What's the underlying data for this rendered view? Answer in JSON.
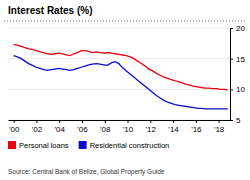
{
  "chart_data": {
    "type": "line",
    "title": "Interest Rates (%)",
    "annotations": [
      "Source: Central Bank of Belize, Global Property Guide"
    ],
    "x": [
      2000,
      2000.3298,
      2000.6596,
      2000.9895,
      2001.3193,
      2001.6491,
      2001.9789,
      2002.3088,
      2002.6386,
      2002.9684,
      2003.2982,
      2003.6281,
      2003.9579,
      2004.2877,
      2004.6175,
      2004.9474,
      2005.2772,
      2005.607,
      2005.9368,
      2006.2667,
      2006.5965,
      2006.9263,
      2007.2561,
      2007.586,
      2007.9158,
      2008.2456,
      2008.5754,
      2008.9053,
      2009.2351,
      2009.5649,
      2009.8947,
      2010.2246,
      2010.5544,
      2010.8842,
      2011.214,
      2011.5439,
      2011.8737,
      2012.2035,
      2012.5333,
      2012.8632,
      2013.193,
      2013.5228,
      2013.8526,
      2014.1825,
      2014.5123,
      2014.8421,
      2015.1719,
      2015.5018,
      2015.8316,
      2016.1614,
      2016.4912,
      2016.8211,
      2017.1509,
      2017.4807,
      2017.8105,
      2018.1404,
      2018.4702,
      2018.8
    ],
    "series": [
      {
        "name": "Personal loans",
        "color": "#e8000e",
        "values": [
          17.3,
          17.2,
          17.0,
          16.8,
          16.6,
          16.5,
          16.3,
          16.1,
          16.0,
          15.8,
          15.7,
          15.8,
          15.9,
          15.8,
          15.6,
          15.5,
          15.8,
          16.0,
          16.3,
          16.3,
          16.2,
          16.0,
          16.1,
          16.0,
          15.9,
          16.0,
          15.9,
          15.8,
          15.7,
          15.6,
          15.5,
          15.3,
          15.0,
          14.6,
          14.2,
          13.8,
          13.3,
          13.0,
          12.6,
          12.3,
          12.0,
          11.8,
          11.6,
          11.4,
          11.2,
          11.0,
          10.8,
          10.7,
          10.5,
          10.4,
          10.3,
          10.2,
          10.2,
          10.1,
          10.1,
          10.0,
          10.0,
          9.9
        ]
      },
      {
        "name": "Residential construction",
        "color": "#0a0acd",
        "values": [
          15.5,
          15.3,
          15.0,
          14.6,
          14.2,
          13.9,
          13.6,
          13.4,
          13.2,
          13.1,
          13.2,
          13.3,
          13.4,
          13.3,
          13.2,
          13.1,
          13.2,
          13.4,
          13.6,
          13.8,
          14.0,
          14.1,
          14.2,
          14.1,
          14.0,
          13.9,
          14.3,
          14.5,
          14.2,
          13.5,
          13.0,
          12.5,
          12.0,
          11.5,
          11.0,
          10.5,
          10.0,
          9.5,
          9.0,
          8.6,
          8.2,
          7.9,
          7.7,
          7.5,
          7.4,
          7.3,
          7.2,
          7.1,
          7.0,
          6.9,
          6.9,
          6.8,
          6.8,
          6.8,
          6.8,
          6.8,
          6.8,
          6.8
        ]
      }
    ],
    "xlim": [
      1999.5,
      2019.0
    ],
    "xticks": [
      {
        "value": 2000,
        "label": "'00"
      },
      {
        "value": 2002,
        "label": "'02"
      },
      {
        "value": 2004,
        "label": "'04"
      },
      {
        "value": 2006,
        "label": "'06"
      },
      {
        "value": 2008,
        "label": "'08"
      },
      {
        "value": 2010,
        "label": "'10"
      },
      {
        "value": 2012,
        "label": "'12"
      },
      {
        "value": 2014,
        "label": "'14"
      },
      {
        "value": 2016,
        "label": "'16"
      },
      {
        "value": 2018,
        "label": "'18"
      }
    ],
    "ylim": [
      5,
      20
    ],
    "yticks": [
      5,
      10,
      15,
      20
    ],
    "grid": true,
    "legend": "bottom"
  }
}
